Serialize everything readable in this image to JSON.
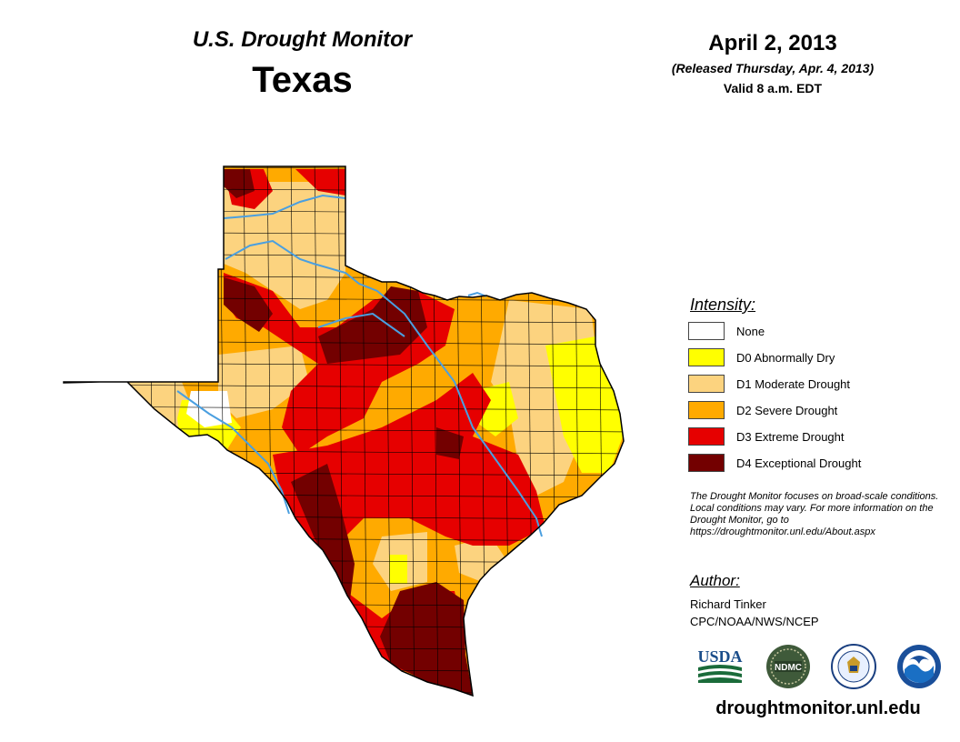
{
  "header": {
    "subtitle": "U.S. Drought Monitor",
    "state": "Texas",
    "date": "April 2, 2013",
    "released": "(Released Thursday, Apr. 4, 2013)",
    "valid": "Valid 8 a.m. EDT"
  },
  "legend": {
    "title": "Intensity:",
    "items": [
      {
        "label": "None",
        "color": "#ffffff"
      },
      {
        "label": "D0 Abnormally Dry",
        "color": "#ffff00"
      },
      {
        "label": "D1 Moderate Drought",
        "color": "#fcd37f"
      },
      {
        "label": "D2 Severe Drought",
        "color": "#ffaa00"
      },
      {
        "label": "D3 Extreme Drought",
        "color": "#e60000"
      },
      {
        "label": "D4 Exceptional Drought",
        "color": "#730000"
      }
    ]
  },
  "note": "The Drought Monitor focuses on broad-scale conditions. Local conditions may vary. For more information on the Drought Monitor, go to https://droughtmonitor.unl.edu/About.aspx",
  "author": {
    "title": "Author:",
    "name": "Richard Tinker",
    "org": "CPC/NOAA/NWS/NCEP"
  },
  "logos": [
    {
      "name": "USDA",
      "icon": "usda-logo"
    },
    {
      "name": "NDMC",
      "icon": "ndmc-logo"
    },
    {
      "name": "DOC",
      "icon": "commerce-seal"
    },
    {
      "name": "NOAA",
      "icon": "noaa-logo"
    }
  ],
  "url": "droughtmonitor.unl.edu",
  "map": {
    "colors": {
      "river": "#4a9fe0",
      "county_line": "#000000",
      "outline": "#000000"
    }
  }
}
